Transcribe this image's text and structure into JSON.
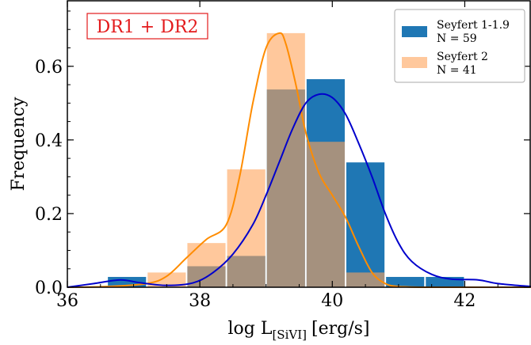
{
  "chart_data": {
    "type": "histogram",
    "title": "",
    "annotation": "DR1 + DR2",
    "xlabel": {
      "main": "log L",
      "sub": "[SiVI]",
      "unit": "[erg/s]"
    },
    "ylabel": "Frequency",
    "xlim": [
      36,
      43
    ],
    "ylim": [
      0,
      0.78
    ],
    "xticks": [
      36,
      38,
      40,
      42
    ],
    "yticks": [
      0.0,
      0.2,
      0.4,
      0.6
    ],
    "ytick_labels": [
      "0.0",
      "0.2",
      "0.4",
      "0.6"
    ],
    "bin_edges": [
      36.6,
      37.2,
      37.8,
      38.4,
      39.0,
      39.6,
      40.2,
      40.8,
      41.4,
      42.0
    ],
    "series": [
      {
        "name": "Seyfert 1-1.9",
        "count_label": "N = 59",
        "color": "#1f77b4",
        "values": [
          0.028,
          0.0,
          0.057,
          0.085,
          0.537,
          0.565,
          0.339,
          0.028,
          0.028
        ],
        "kde": {
          "color": "#0000cc",
          "x": [
            36.0,
            36.4,
            36.8,
            37.1,
            37.5,
            37.9,
            38.2,
            38.5,
            38.8,
            39.0,
            39.2,
            39.4,
            39.6,
            39.8,
            40.0,
            40.2,
            40.4,
            40.6,
            40.8,
            41.0,
            41.2,
            41.5,
            41.8,
            42.2,
            42.5,
            43.0
          ],
          "y": [
            0.0,
            0.01,
            0.02,
            0.012,
            0.005,
            0.012,
            0.04,
            0.09,
            0.17,
            0.25,
            0.34,
            0.43,
            0.5,
            0.524,
            0.515,
            0.47,
            0.39,
            0.3,
            0.2,
            0.12,
            0.07,
            0.035,
            0.022,
            0.02,
            0.01,
            0.002
          ]
        }
      },
      {
        "name": "Seyfert 2",
        "count_label": "N = 41",
        "color": "#ffa35a",
        "values": [
          0.0,
          0.04,
          0.12,
          0.32,
          0.69,
          0.395,
          0.04,
          0.0,
          0.0
        ],
        "kde": {
          "color": "#ff8c00",
          "x": [
            36.0,
            36.6,
            37.2,
            37.5,
            37.8,
            38.1,
            38.4,
            38.6,
            38.8,
            39.0,
            39.2,
            39.3,
            39.45,
            39.6,
            39.8,
            40.0,
            40.2,
            40.4,
            40.6,
            40.8,
            41.0,
            41.4,
            42.0,
            43.0
          ],
          "y": [
            0.0,
            0.002,
            0.01,
            0.03,
            0.08,
            0.13,
            0.17,
            0.3,
            0.5,
            0.65,
            0.69,
            0.66,
            0.55,
            0.42,
            0.31,
            0.25,
            0.19,
            0.11,
            0.04,
            0.01,
            0.002,
            0.0,
            0.0,
            0.0
          ]
        }
      }
    ],
    "legend": "top-right",
    "grid": false
  }
}
